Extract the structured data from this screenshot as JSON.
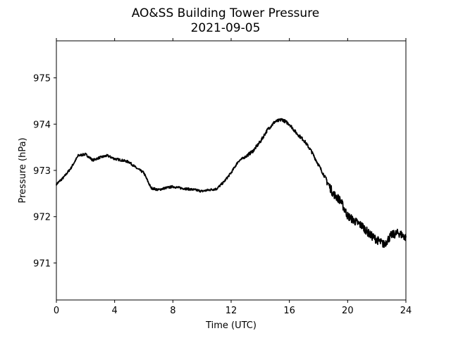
{
  "chart_data": {
    "type": "line",
    "title": "AO&SS Building Tower Pressure",
    "subtitle": "2021-09-05",
    "xlabel": "Time (UTC)",
    "ylabel": "Pressure (hPa)",
    "xlim": [
      0,
      24
    ],
    "ylim": [
      970.2,
      975.8
    ],
    "xticks": [
      0,
      4,
      8,
      12,
      16,
      20,
      24
    ],
    "yticks": [
      971,
      972,
      973,
      974,
      975
    ],
    "grid": false,
    "line_color": "#000000",
    "series": [
      {
        "x": [
          0,
          0.5,
          1.0,
          1.5,
          2.0,
          2.5,
          3.0,
          3.5,
          4.0,
          4.5,
          5.0,
          5.5,
          6.0,
          6.5,
          7.0,
          7.5,
          8.0,
          8.5,
          9.0,
          9.5,
          10.0,
          10.5,
          11.0,
          11.5,
          12.0,
          12.5,
          13.0,
          13.5,
          14.0,
          14.5,
          15.0,
          15.5,
          16.0,
          16.5,
          17.0,
          17.5,
          18.0,
          18.5,
          19.0,
          19.5,
          20.0,
          20.5,
          21.0,
          21.5,
          22.0,
          22.5,
          23.0,
          23.5,
          24.0
        ],
        "values": [
          972.7,
          972.85,
          973.05,
          973.32,
          973.35,
          973.22,
          973.28,
          973.32,
          973.25,
          973.22,
          973.18,
          973.05,
          972.95,
          972.62,
          972.58,
          972.62,
          972.65,
          972.62,
          972.6,
          972.58,
          972.55,
          972.58,
          972.6,
          972.75,
          972.95,
          973.2,
          973.3,
          973.42,
          973.62,
          973.88,
          974.05,
          974.1,
          974.0,
          973.8,
          973.65,
          973.42,
          973.12,
          972.82,
          972.5,
          972.35,
          972.02,
          971.9,
          971.8,
          971.62,
          971.5,
          971.4,
          971.6,
          971.65,
          971.55
        ]
      }
    ]
  }
}
